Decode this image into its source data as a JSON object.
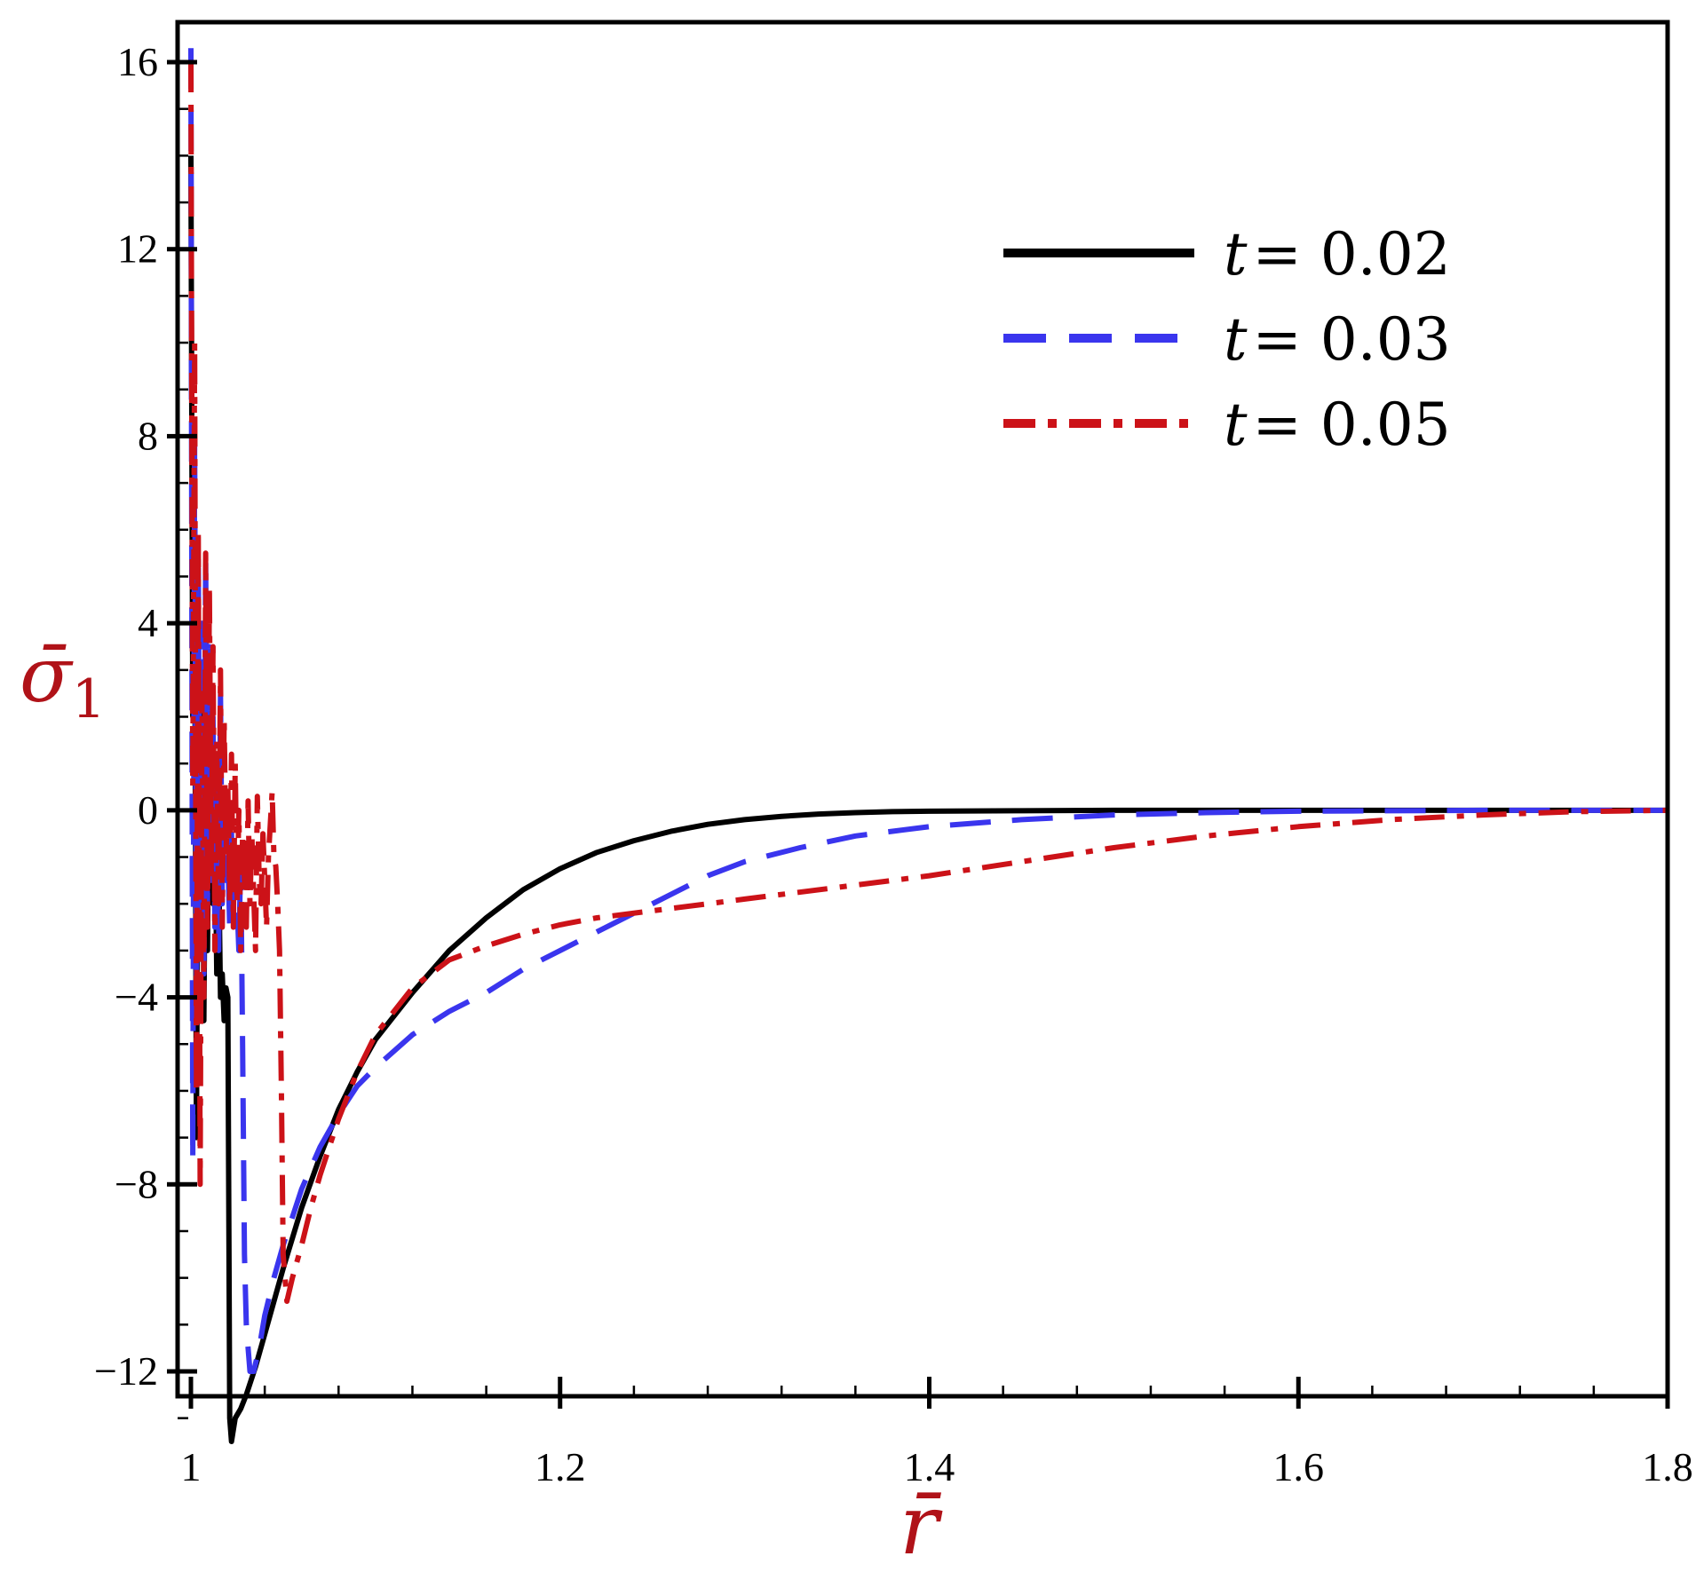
{
  "chart_data": {
    "type": "line",
    "title": "",
    "xlabel": "r̄",
    "ylabel": "σ̄",
    "ylabel_subscript": "1",
    "xlim": [
      1.0,
      1.8
    ],
    "ylim": [
      -13.5,
      16.5
    ],
    "x_ticks": [
      1,
      1.2,
      1.4,
      1.6,
      1.8
    ],
    "x_tick_labels": [
      "1",
      "1.2",
      "1.4",
      "1.6",
      "1.8"
    ],
    "y_ticks": [
      -12,
      -8,
      -4,
      0,
      4,
      8,
      12,
      16
    ],
    "y_tick_labels": [
      "−12",
      "−8",
      "−4",
      "0",
      "4",
      "8",
      "12",
      "16"
    ],
    "grid": false,
    "legend_placement": "top-right",
    "series": [
      {
        "name": "t = 0.02",
        "legend_var": "t",
        "legend_value": "= 0.02",
        "color": "#000000",
        "style": "solid",
        "x": [
          1.0,
          1.001,
          1.002,
          1.003,
          1.004,
          1.005,
          1.006,
          1.007,
          1.008,
          1.009,
          1.01,
          1.011,
          1.012,
          1.013,
          1.014,
          1.015,
          1.016,
          1.017,
          1.018,
          1.019,
          1.02,
          1.021,
          1.022,
          1.024,
          1.027,
          1.03,
          1.035,
          1.04,
          1.05,
          1.06,
          1.07,
          1.08,
          1.09,
          1.1,
          1.12,
          1.14,
          1.16,
          1.18,
          1.2,
          1.22,
          1.24,
          1.26,
          1.28,
          1.3,
          1.32,
          1.34,
          1.36,
          1.38,
          1.4,
          1.45,
          1.5,
          1.6,
          1.7,
          1.8
        ],
        "y": [
          14.0,
          2.0,
          4.5,
          -7.0,
          1.5,
          -2.5,
          3.0,
          -4.5,
          0.5,
          -3.0,
          2.0,
          -1.0,
          -2.0,
          0.0,
          -3.5,
          -1.0,
          -4.0,
          -3.5,
          -4.5,
          -3.8,
          -4.0,
          -13.0,
          -13.5,
          -13.0,
          -12.8,
          -12.5,
          -11.9,
          -11.2,
          -9.8,
          -8.5,
          -7.4,
          -6.4,
          -5.6,
          -4.9,
          -3.9,
          -3.0,
          -2.3,
          -1.7,
          -1.25,
          -0.9,
          -0.65,
          -0.45,
          -0.3,
          -0.2,
          -0.13,
          -0.08,
          -0.05,
          -0.03,
          -0.02,
          -0.01,
          0.0,
          0.0,
          0.0,
          0.0
        ]
      },
      {
        "name": "t = 0.03",
        "legend_var": "t",
        "legend_value": "= 0.03",
        "color": "#3a35ee",
        "style": "dashed",
        "x": [
          1.0,
          1.001,
          1.002,
          1.003,
          1.004,
          1.005,
          1.006,
          1.007,
          1.008,
          1.009,
          1.01,
          1.011,
          1.012,
          1.013,
          1.014,
          1.015,
          1.016,
          1.017,
          1.018,
          1.019,
          1.02,
          1.021,
          1.022,
          1.023,
          1.024,
          1.025,
          1.026,
          1.027,
          1.028,
          1.029,
          1.03,
          1.031,
          1.032,
          1.034,
          1.037,
          1.04,
          1.045,
          1.05,
          1.06,
          1.07,
          1.08,
          1.09,
          1.1,
          1.12,
          1.14,
          1.16,
          1.18,
          1.2,
          1.22,
          1.24,
          1.26,
          1.28,
          1.3,
          1.33,
          1.36,
          1.4,
          1.45,
          1.5,
          1.55,
          1.6,
          1.7,
          1.8
        ],
        "y": [
          16.3,
          -7.5,
          8.0,
          -4.0,
          5.5,
          -3.0,
          4.0,
          -3.5,
          5.5,
          -2.0,
          3.5,
          -1.5,
          2.0,
          -2.5,
          1.0,
          -3.0,
          2.5,
          -2.0,
          0.0,
          -1.5,
          -1.0,
          -2.5,
          -0.5,
          -2.0,
          -1.0,
          -2.0,
          -3.0,
          -1.0,
          -5.0,
          -9.5,
          -11.0,
          -11.5,
          -12.0,
          -12.0,
          -11.5,
          -10.8,
          -10.0,
          -9.3,
          -8.1,
          -7.2,
          -6.5,
          -5.9,
          -5.5,
          -4.8,
          -4.3,
          -3.9,
          -3.4,
          -3.0,
          -2.6,
          -2.2,
          -1.8,
          -1.4,
          -1.1,
          -0.8,
          -0.55,
          -0.35,
          -0.2,
          -0.1,
          -0.05,
          -0.02,
          0.0,
          0.0
        ]
      },
      {
        "name": "t = 0.05",
        "legend_var": "t",
        "legend_value": "= 0.05",
        "color": "#cc1218",
        "style": "dashdot",
        "x": [
          1.0,
          1.001,
          1.002,
          1.003,
          1.004,
          1.005,
          1.006,
          1.007,
          1.008,
          1.009,
          1.01,
          1.011,
          1.012,
          1.013,
          1.014,
          1.015,
          1.016,
          1.017,
          1.018,
          1.019,
          1.02,
          1.021,
          1.022,
          1.023,
          1.024,
          1.025,
          1.026,
          1.027,
          1.028,
          1.029,
          1.03,
          1.031,
          1.032,
          1.033,
          1.034,
          1.035,
          1.036,
          1.037,
          1.038,
          1.039,
          1.04,
          1.041,
          1.042,
          1.043,
          1.044,
          1.045,
          1.046,
          1.047,
          1.048,
          1.049,
          1.05,
          1.052,
          1.055,
          1.06,
          1.065,
          1.07,
          1.08,
          1.09,
          1.1,
          1.12,
          1.14,
          1.16,
          1.18,
          1.2,
          1.22,
          1.25,
          1.28,
          1.3,
          1.35,
          1.4,
          1.45,
          1.5,
          1.55,
          1.6,
          1.65,
          1.7,
          1.75,
          1.8
        ],
        "y": [
          16.0,
          0.5,
          10.0,
          -6.0,
          6.0,
          -8.0,
          2.5,
          -4.0,
          5.5,
          -2.5,
          4.8,
          -1.5,
          3.5,
          -3.0,
          1.5,
          -2.0,
          3.0,
          -2.5,
          2.0,
          -1.0,
          0.5,
          -2.0,
          1.2,
          -2.5,
          1.0,
          -2.0,
          0.0,
          -3.0,
          -0.5,
          -1.5,
          -2.5,
          0.2,
          -2.0,
          -0.5,
          -1.8,
          -3.0,
          0.3,
          -1.5,
          -2.0,
          -0.5,
          -1.5,
          -2.5,
          -1.0,
          -0.3,
          0.4,
          -1.0,
          -1.2,
          -2.0,
          -3.0,
          -6.0,
          -9.5,
          -10.5,
          -10.0,
          -9.3,
          -8.5,
          -7.8,
          -6.6,
          -5.6,
          -4.8,
          -3.8,
          -3.2,
          -2.9,
          -2.65,
          -2.45,
          -2.3,
          -2.15,
          -2.0,
          -1.9,
          -1.65,
          -1.4,
          -1.1,
          -0.8,
          -0.55,
          -0.35,
          -0.2,
          -0.1,
          -0.03,
          0.0
        ]
      }
    ]
  }
}
